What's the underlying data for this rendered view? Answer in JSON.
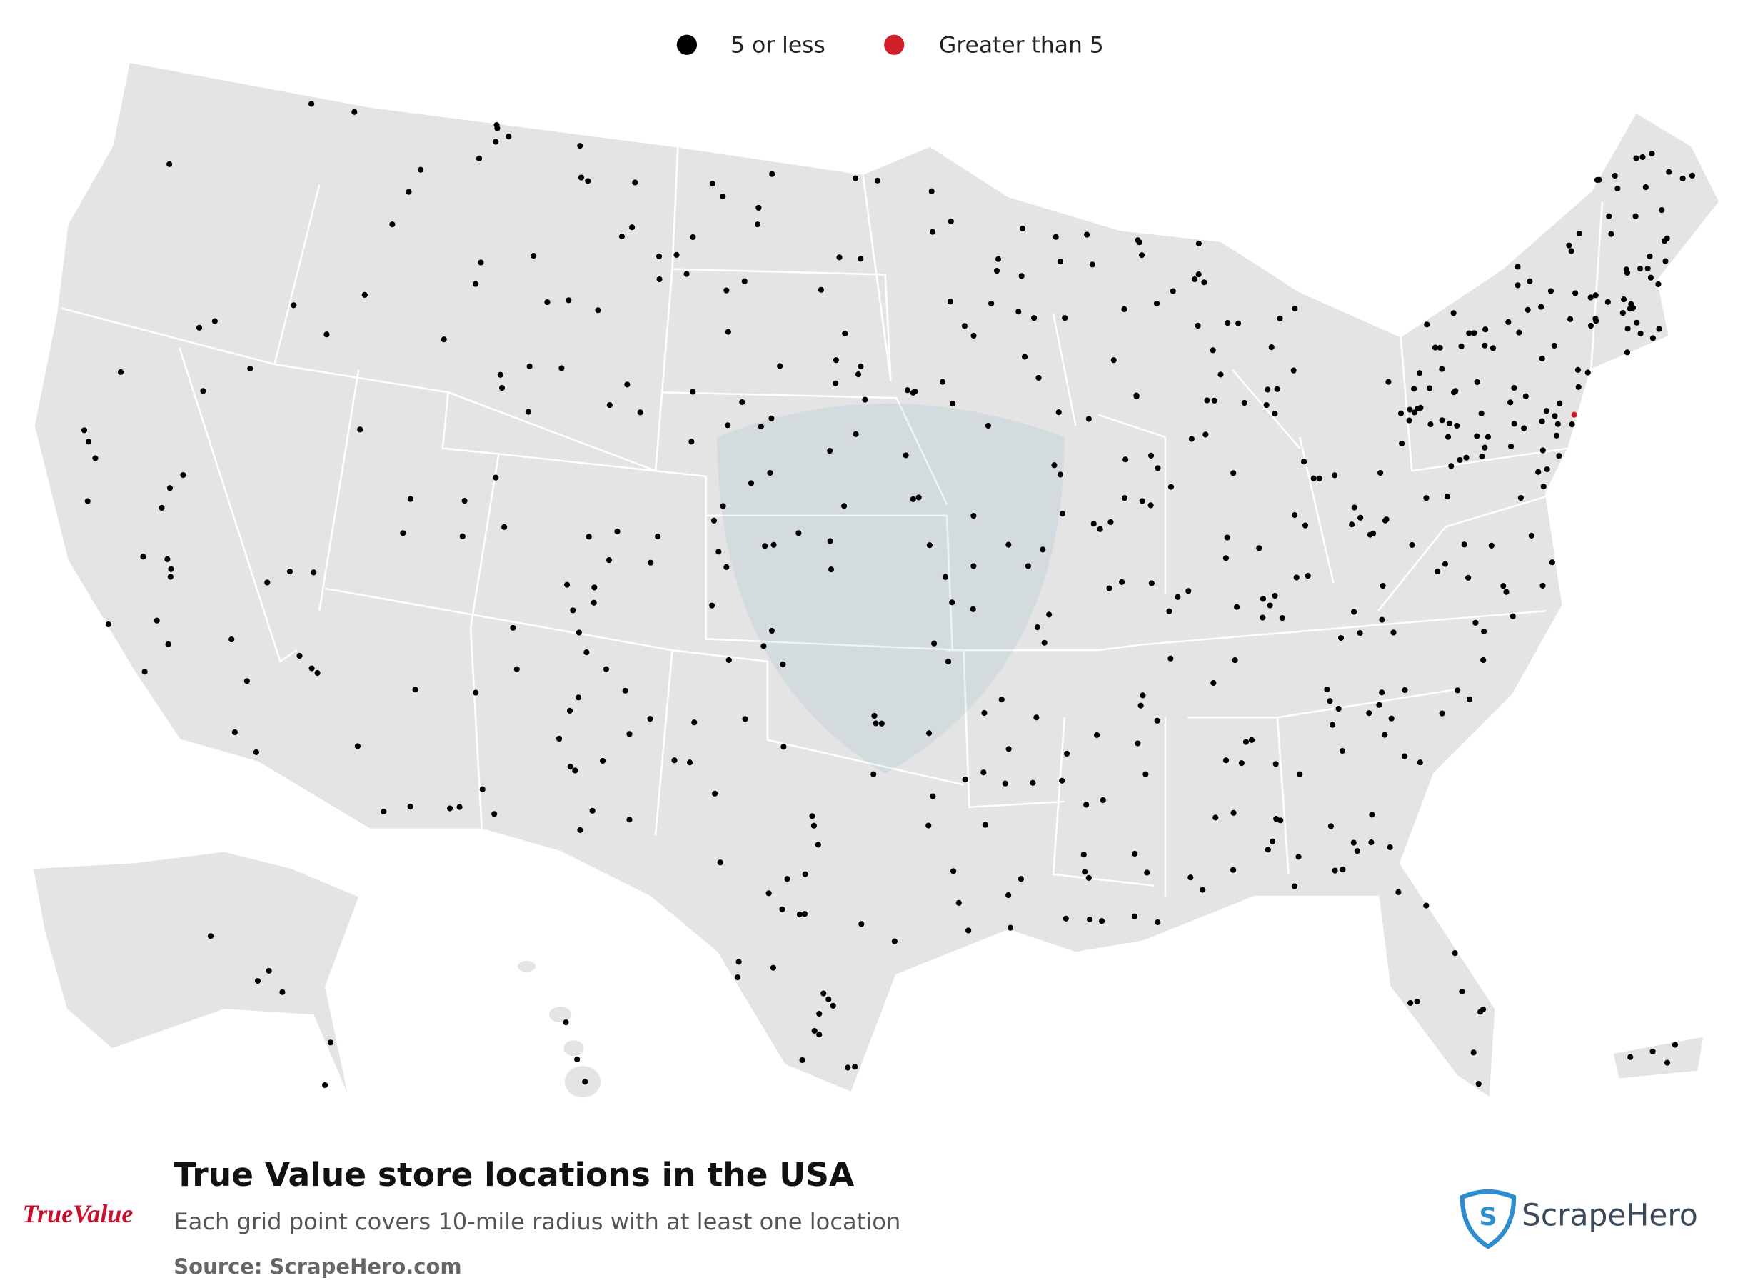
{
  "legend": [
    {
      "label": "5 or less",
      "color": "#000000"
    },
    {
      "label": "Greater than 5",
      "color": "#d0202a"
    }
  ],
  "title": "True Value store locations in the USA",
  "subtitle": "Each grid point covers 10-mile radius with at least one location",
  "source": "Source: ScrapeHero.com",
  "brand_logo": "TrueValue",
  "watermark_logo": "ScrapeHero"
}
